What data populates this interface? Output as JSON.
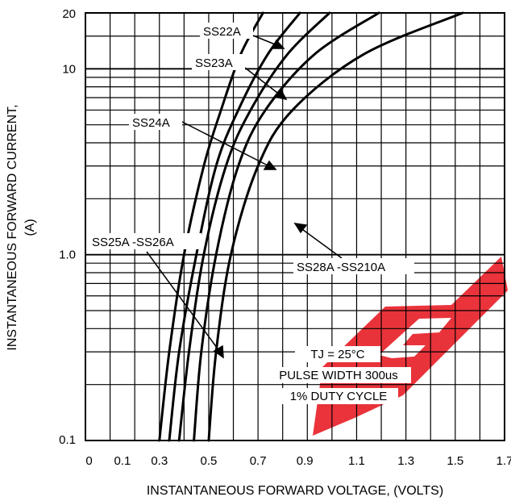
{
  "chart_data": {
    "type": "line",
    "title": "",
    "xlabel": "INSTANTANEOUS FORWARD VOLTAGE, (VOLTS)",
    "ylabel_line1": "INSTANTANEOUS FORWARD CURRENT,",
    "ylabel_line2": "(A)",
    "xlim": [
      0,
      1.7
    ],
    "ylim": [
      0.1,
      20
    ],
    "y_scale": "log",
    "grid": true,
    "x_ticks": [
      "0",
      "0.1",
      "0.3",
      "0.5",
      "0.7",
      "0.9",
      "1.1",
      "1.3",
      "1.5",
      "1.7"
    ],
    "y_ticks": [
      "20",
      "10",
      "1.0",
      "0.1"
    ],
    "series": [
      {
        "name": "SS22A",
        "points": [
          [
            0.3,
            0.1
          ],
          [
            0.34,
            0.3
          ],
          [
            0.4,
            1.0
          ],
          [
            0.48,
            3.0
          ],
          [
            0.55,
            6.0
          ],
          [
            0.63,
            12.0
          ],
          [
            0.72,
            20.0
          ]
        ]
      },
      {
        "name": "SS23A",
        "points": [
          [
            0.34,
            0.1
          ],
          [
            0.38,
            0.3
          ],
          [
            0.45,
            1.0
          ],
          [
            0.53,
            3.0
          ],
          [
            0.62,
            6.0
          ],
          [
            0.74,
            12.0
          ],
          [
            0.87,
            20.0
          ]
        ]
      },
      {
        "name": "SS24A",
        "points": [
          [
            0.38,
            0.1
          ],
          [
            0.42,
            0.3
          ],
          [
            0.48,
            1.0
          ],
          [
            0.57,
            3.0
          ],
          [
            0.67,
            6.0
          ],
          [
            0.82,
            12.0
          ],
          [
            0.99,
            20.0
          ]
        ]
      },
      {
        "name": "SS25A -SS26A",
        "points": [
          [
            0.44,
            0.1
          ],
          [
            0.47,
            0.3
          ],
          [
            0.53,
            1.0
          ],
          [
            0.62,
            3.0
          ],
          [
            0.73,
            6.0
          ],
          [
            0.93,
            12.0
          ],
          [
            1.19,
            20.0
          ]
        ]
      },
      {
        "name": "SS28A -SS210A",
        "points": [
          [
            0.5,
            0.1
          ],
          [
            0.53,
            0.3
          ],
          [
            0.59,
            1.0
          ],
          [
            0.7,
            3.0
          ],
          [
            0.84,
            6.0
          ],
          [
            1.13,
            12.0
          ],
          [
            1.53,
            20.0
          ]
        ]
      }
    ],
    "labels": {
      "ss22a": "SS22A",
      "ss23a": "SS23A",
      "ss24a": "SS24A",
      "ss25a": "SS25A -SS26A",
      "ss28a": "SS28A -SS210A"
    },
    "conditions": [
      "TJ = 25°C",
      "PULSE WIDTH 300us",
      "1% DUTY CYCLE"
    ],
    "watermark_text": "EP"
  },
  "colors": {
    "curve": "#000000",
    "grid": "#000000",
    "watermark": "#e8242c"
  }
}
